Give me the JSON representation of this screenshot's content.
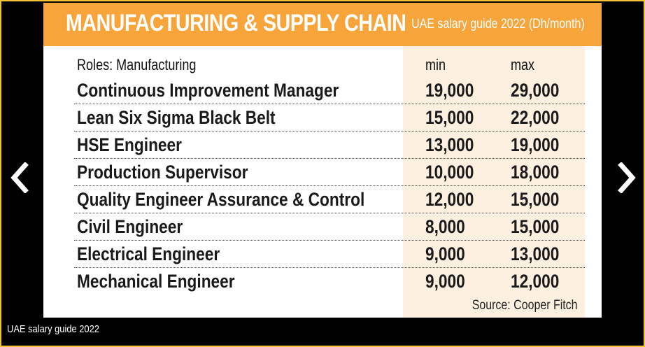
{
  "gallery": {
    "caption": "UAE salary guide 2022",
    "prev_icon": "chevron-left-icon",
    "next_icon": "chevron-right-icon",
    "frame_color": "#f2c230"
  },
  "card": {
    "title": "MANUFACTURING & SUPPLY CHAIN",
    "subtitle": "UAE salary guide 2022 (Dh/month)",
    "banner_color": "#f7a43a",
    "columns": {
      "role": "Roles: Manufacturing",
      "min": "min",
      "max": "max"
    },
    "rows": [
      {
        "role": "Continuous Improvement Manager",
        "min": "19,000",
        "max": "29,000"
      },
      {
        "role": "Lean Six Sigma Black Belt",
        "min": "15,000",
        "max": "22,000"
      },
      {
        "role": "HSE Engineer",
        "min": "13,000",
        "max": "19,000"
      },
      {
        "role": "Production Supervisor",
        "min": "10,000",
        "max": "18,000"
      },
      {
        "role": "Quality Engineer Assurance & Control",
        "min": "12,000",
        "max": "15,000"
      },
      {
        "role": "Civil Engineer",
        "min": "8,000",
        "max": "15,000"
      },
      {
        "role": "Electrical Engineer",
        "min": "9,000",
        "max": "13,000"
      },
      {
        "role": "Mechanical Engineer",
        "min": "9,000",
        "max": "12,000"
      }
    ],
    "source": "Source: Cooper Fitch"
  }
}
